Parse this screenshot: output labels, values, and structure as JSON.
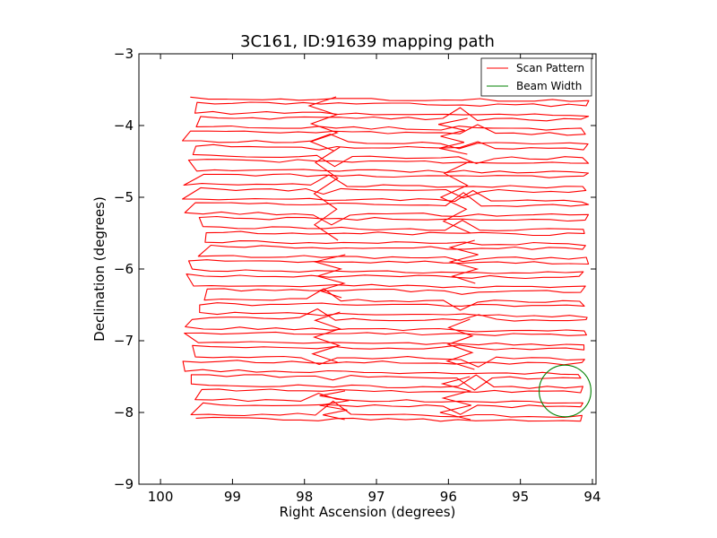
{
  "chart_data": {
    "type": "line",
    "title": "3C161, ID:91639 mapping path",
    "xlabel": "Right Ascension (degrees)",
    "ylabel": "Declination (degrees)",
    "xlim": [
      100.3,
      93.95
    ],
    "ylim": [
      -9,
      -3
    ],
    "xticks": [
      100,
      99,
      98,
      97,
      96,
      95,
      94
    ],
    "yticks": [
      -3,
      -4,
      -5,
      -6,
      -7,
      -8,
      -9
    ],
    "xtick_labels": [
      "100",
      "99",
      "98",
      "97",
      "96",
      "95",
      "94"
    ],
    "ytick_labels": [
      "−3",
      "−4",
      "−5",
      "−6",
      "−7",
      "−8",
      "−9"
    ],
    "grid": false,
    "legend": {
      "position": "top-right",
      "entries": [
        {
          "label": "Scan Pattern",
          "color": "#ff0000"
        },
        {
          "label": "Beam Width",
          "color": "#008000"
        }
      ]
    },
    "series": [
      {
        "name": "Scan Pattern",
        "color": "#ff0000",
        "scan": {
          "dec_start": -3.62,
          "dec_end": -8.12,
          "rows": 46,
          "ra_left_min": 99.3,
          "ra_left_max": 99.7,
          "ra_right_min": 94.2,
          "ra_right_max": 94.05
        }
      },
      {
        "name": "Beam Width",
        "color": "#008000",
        "circle": {
          "center_ra": 94.38,
          "center_dec": -7.7,
          "radius_deg": 0.36
        }
      }
    ]
  }
}
